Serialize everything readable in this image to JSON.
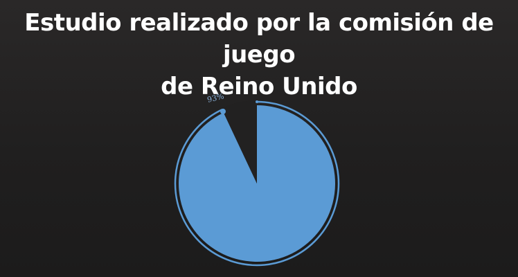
{
  "title_lines": [
    "Estudio realizado por la comisión de juego",
    "de Reino Unido"
  ],
  "chart_data": {
    "type": "pie",
    "title": "Estudio realizado por la comisión de juego de Reino Unido",
    "slices": [
      {
        "label": "93%",
        "value": 93,
        "color": "#5b9bd5"
      },
      {
        "label": "",
        "value": 7,
        "color": "#222121"
      }
    ],
    "data_label": "93%",
    "legend": "none"
  }
}
